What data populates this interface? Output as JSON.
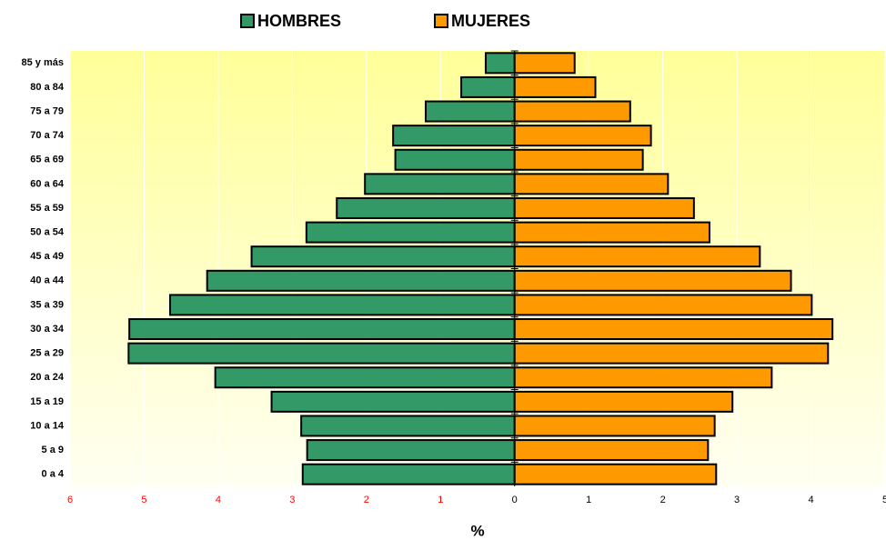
{
  "chart_data": {
    "type": "pyramid",
    "x_label": "%",
    "categories": [
      "85 y más",
      "80 a 84",
      "75 a 79",
      "70 a 74",
      "65 a 69",
      "60 a 64",
      "55 a 59",
      "50 a 54",
      "45 a 49",
      "40 a 44",
      "35 a 39",
      "30 a 34",
      "25 a 29",
      "20 a 24",
      "15 a 19",
      "10 a 14",
      "5 a 9",
      "0 a 4"
    ],
    "series": [
      {
        "name": "HOMBRES",
        "color": "#339966",
        "values": [
          -0.39,
          -0.72,
          -1.2,
          -1.64,
          -1.61,
          -2.02,
          -2.4,
          -2.81,
          -3.55,
          -4.15,
          -4.65,
          -5.2,
          -5.21,
          -4.04,
          -3.28,
          -2.88,
          -2.8,
          -2.86
        ]
      },
      {
        "name": "MUJERES",
        "color": "#ff9900",
        "values": [
          0.81,
          1.09,
          1.56,
          1.84,
          1.73,
          2.07,
          2.42,
          2.63,
          3.31,
          3.73,
          4.01,
          4.29,
          4.23,
          3.47,
          2.94,
          2.7,
          2.61,
          2.72
        ]
      }
    ],
    "xlim": [
      -6,
      5
    ],
    "xticks": [
      {
        "value": -6,
        "label": "6"
      },
      {
        "value": -5,
        "label": "5"
      },
      {
        "value": -4,
        "label": "4"
      },
      {
        "value": -3,
        "label": "3"
      },
      {
        "value": -2,
        "label": "2"
      },
      {
        "value": -1,
        "label": "1"
      },
      0,
      1,
      2,
      3,
      4,
      5
    ],
    "negative_tick_color": "#ff0000",
    "legend": "top",
    "grid": true
  }
}
